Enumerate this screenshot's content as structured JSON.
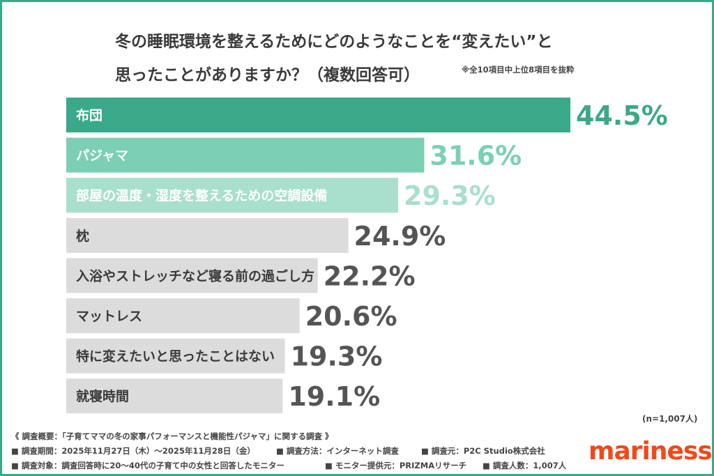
{
  "header": {
    "title_line1": "冬の睡眠環境を整えるためにどのようなことを“変えたい”と",
    "title_line2": "思ったことがありますか？（複数回答可）",
    "note": "※全10項目中上位8項目を抜粋"
  },
  "chart_data": {
    "type": "bar",
    "orientation": "horizontal",
    "categories": [
      "布団",
      "パジャマ",
      "部屋の温度・湿度を整えるための空調設備",
      "枕",
      "入浴やストレッチなど寝る前の過ごし方",
      "マットレス",
      "特に変えたいと思ったことはない",
      "就寝時間"
    ],
    "values": [
      44.5,
      31.6,
      29.3,
      24.9,
      22.2,
      20.6,
      19.3,
      19.1
    ],
    "value_labels": [
      "44.5%",
      "31.6%",
      "29.3%",
      "24.9%",
      "22.2%",
      "20.6%",
      "19.3%",
      "19.1%"
    ],
    "unit": "%",
    "colors": {
      "top1": "#3aa98a",
      "top2": "#7ccfb5",
      "top3": "#a9dfcd",
      "other": "#dcdcdc",
      "label_top1": "#3aa98a",
      "label_top2": "#7ccfb5",
      "label_top3": "#a9dfcd",
      "label_other": "#555555"
    }
  },
  "sample_note": "(n=1,007人)",
  "footer": {
    "summary": "《 調査概要：「子育てママの冬の家事パフォーマンスと機能性パジャマ」に関する調査 》",
    "period": "■ 調査期間：2025年11月27日（木）～2025年11月28日（金）",
    "method": "■ 調査方法：インターネット調査",
    "source": "■ 調査元：P2C Studio株式会社",
    "target": "■ 調査対象：調査回答時に20～40代の子育て中の女性と回答したモニター",
    "provider": "■ モニター提供元：PRIZMAリサーチ",
    "count": "■ 調査人数：1,007人"
  },
  "logo": "mariness"
}
